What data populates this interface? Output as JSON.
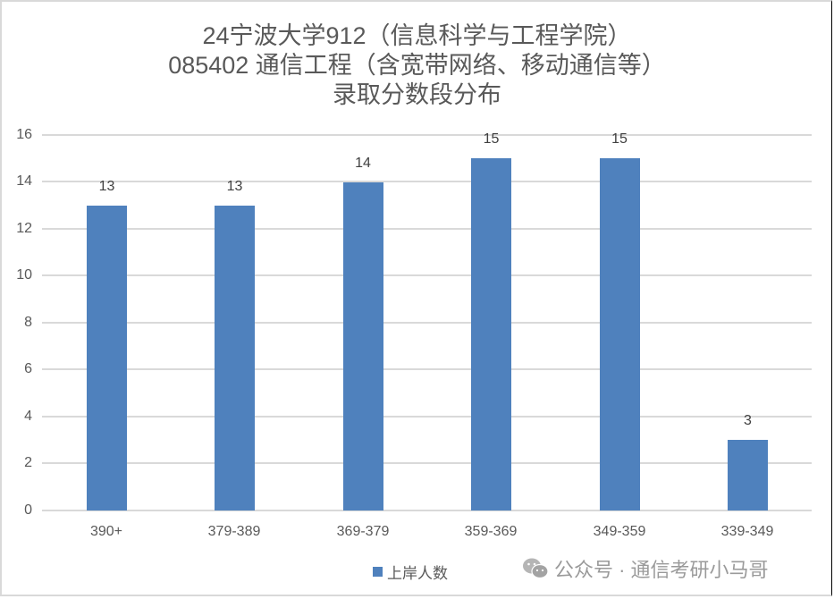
{
  "chart_data": {
    "type": "bar",
    "title": "24宁波大学912（信息科学与工程学院） 085402 通信工程（含宽带网络、移动通信等） 录取分数段分布",
    "title_lines": [
      "24宁波大学912（信息科学与工程学院）",
      "085402 通信工程（含宽带网络、移动通信等）",
      "录取分数段分布"
    ],
    "categories": [
      "390+",
      "379-389",
      "369-379",
      "359-369",
      "349-359",
      "339-349"
    ],
    "series": [
      {
        "name": "上岸人数",
        "values": [
          13,
          13,
          14,
          15,
          15,
          3
        ],
        "color": "#4f81bd"
      }
    ],
    "values": [
      13,
      13,
      14,
      15,
      15,
      3
    ],
    "data_labels": [
      "13",
      "13",
      "14",
      "15",
      "15",
      "3"
    ],
    "xlabel": "",
    "ylabel": "",
    "ylim": [
      0,
      16
    ],
    "yticks": [
      "0",
      "2",
      "4",
      "6",
      "8",
      "10",
      "12",
      "14",
      "16"
    ],
    "grid": true,
    "legend_position": "bottom"
  },
  "legend": {
    "label": "上岸人数"
  },
  "watermark": {
    "text": "公众号 · 通信考研小马哥",
    "icon": "wechat-icon"
  }
}
